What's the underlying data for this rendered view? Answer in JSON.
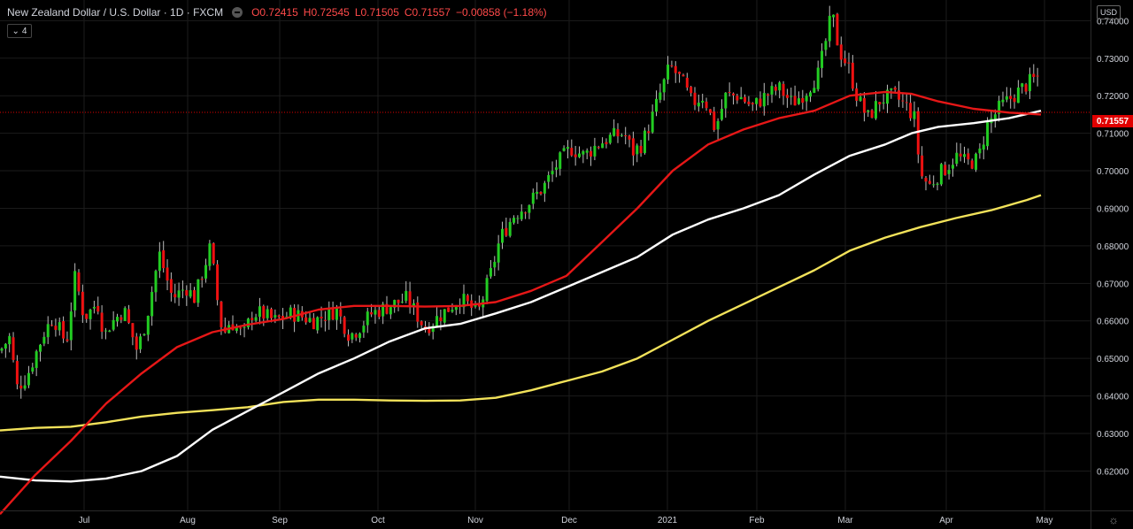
{
  "header": {
    "symbol": "New Zealand Dollar / U.S. Dollar · 1D · FXCM",
    "open": "O0.72415",
    "high": "H0.72545",
    "low": "L0.71505",
    "close": "C0.71557",
    "change": "−0.00858 (−1.18%)",
    "collapse_count": "4",
    "currency": "USD",
    "last_price": "0.71557"
  },
  "colors": {
    "up": "#22cc22",
    "down": "#ee1111",
    "ma_red": "#e61717",
    "ma_white": "#ffffff",
    "ma_yellow": "#f2e25a",
    "grid": "#1b1b1b"
  },
  "chart_data": {
    "type": "candlestick",
    "xlabels": [
      "Jul",
      "Aug",
      "Sep",
      "Oct",
      "Nov",
      "Dec",
      "2021",
      "Feb",
      "Mar",
      "Apr",
      "May"
    ],
    "yticks": [
      "0.74000",
      "0.73000",
      "0.72000",
      "0.71000",
      "0.70000",
      "0.69000",
      "0.68000",
      "0.67000",
      "0.66000",
      "0.65000",
      "0.64000",
      "0.63000",
      "0.62000"
    ],
    "ylim": [
      0.6095,
      0.7455
    ],
    "last_price": 0.71557,
    "price_anchors": [
      [
        0,
        0.652
      ],
      [
        12,
        0.656
      ],
      [
        18,
        0.642
      ],
      [
        30,
        0.645
      ],
      [
        50,
        0.657
      ],
      [
        60,
        0.661
      ],
      [
        75,
        0.654
      ],
      [
        85,
        0.672
      ],
      [
        95,
        0.661
      ],
      [
        100,
        0.662
      ],
      [
        110,
        0.665
      ],
      [
        118,
        0.656
      ],
      [
        124,
        0.659
      ],
      [
        140,
        0.663
      ],
      [
        155,
        0.652
      ],
      [
        165,
        0.66
      ],
      [
        180,
        0.678
      ],
      [
        195,
        0.666
      ],
      [
        210,
        0.669
      ],
      [
        220,
        0.666
      ],
      [
        238,
        0.68
      ],
      [
        244,
        0.668
      ],
      [
        252,
        0.656
      ],
      [
        260,
        0.66
      ],
      [
        275,
        0.656
      ],
      [
        285,
        0.662
      ],
      [
        295,
        0.662
      ],
      [
        310,
        0.66
      ],
      [
        330,
        0.662
      ],
      [
        355,
        0.66
      ],
      [
        380,
        0.663
      ],
      [
        395,
        0.656
      ],
      [
        405,
        0.658
      ],
      [
        420,
        0.662
      ],
      [
        440,
        0.664
      ],
      [
        460,
        0.666
      ],
      [
        480,
        0.658
      ],
      [
        500,
        0.662
      ],
      [
        520,
        0.666
      ],
      [
        540,
        0.662
      ],
      [
        555,
        0.673
      ],
      [
        565,
        0.682
      ],
      [
        580,
        0.688
      ],
      [
        600,
        0.692
      ],
      [
        615,
        0.696
      ],
      [
        630,
        0.702
      ],
      [
        645,
        0.706
      ],
      [
        660,
        0.704
      ],
      [
        675,
        0.707
      ],
      [
        690,
        0.709
      ],
      [
        705,
        0.71
      ],
      [
        715,
        0.705
      ],
      [
        725,
        0.707
      ],
      [
        735,
        0.713
      ],
      [
        745,
        0.72
      ],
      [
        757,
        0.728
      ],
      [
        770,
        0.724
      ],
      [
        782,
        0.718
      ],
      [
        795,
        0.72
      ],
      [
        808,
        0.711
      ],
      [
        820,
        0.72
      ],
      [
        835,
        0.72
      ],
      [
        850,
        0.717
      ],
      [
        865,
        0.72
      ],
      [
        880,
        0.722
      ],
      [
        895,
        0.718
      ],
      [
        910,
        0.721
      ],
      [
        925,
        0.726
      ],
      [
        940,
        0.742
      ],
      [
        948,
        0.732
      ],
      [
        958,
        0.728
      ],
      [
        968,
        0.72
      ],
      [
        980,
        0.714
      ],
      [
        995,
        0.719
      ],
      [
        1010,
        0.72
      ],
      [
        1025,
        0.717
      ],
      [
        1033,
        0.714
      ],
      [
        1040,
        0.699
      ],
      [
        1050,
        0.696
      ],
      [
        1060,
        0.699
      ],
      [
        1070,
        0.701
      ],
      [
        1080,
        0.704
      ],
      [
        1092,
        0.702
      ],
      [
        1105,
        0.703
      ],
      [
        1115,
        0.712
      ],
      [
        1130,
        0.717
      ],
      [
        1145,
        0.72
      ],
      [
        1160,
        0.723
      ],
      [
        1172,
        0.725
      ],
      [
        1176,
        0.72415
      ]
    ],
    "ma_red": [
      [
        0,
        0.6085
      ],
      [
        40,
        0.619
      ],
      [
        80,
        0.628
      ],
      [
        120,
        0.638
      ],
      [
        160,
        0.646
      ],
      [
        200,
        0.653
      ],
      [
        240,
        0.657
      ],
      [
        280,
        0.659
      ],
      [
        320,
        0.6605
      ],
      [
        360,
        0.663
      ],
      [
        400,
        0.664
      ],
      [
        440,
        0.664
      ],
      [
        480,
        0.6638
      ],
      [
        520,
        0.664
      ],
      [
        560,
        0.665
      ],
      [
        600,
        0.668
      ],
      [
        640,
        0.672
      ],
      [
        680,
        0.681
      ],
      [
        720,
        0.69
      ],
      [
        760,
        0.7
      ],
      [
        800,
        0.707
      ],
      [
        840,
        0.711
      ],
      [
        880,
        0.714
      ],
      [
        920,
        0.716
      ],
      [
        960,
        0.72
      ],
      [
        1000,
        0.721
      ],
      [
        1030,
        0.7205
      ],
      [
        1060,
        0.7185
      ],
      [
        1100,
        0.7165
      ],
      [
        1140,
        0.7155
      ],
      [
        1176,
        0.715
      ]
    ],
    "ma_white": [
      [
        0,
        0.6185
      ],
      [
        40,
        0.6175
      ],
      [
        80,
        0.6172
      ],
      [
        120,
        0.618
      ],
      [
        160,
        0.62
      ],
      [
        200,
        0.624
      ],
      [
        240,
        0.631
      ],
      [
        280,
        0.636
      ],
      [
        320,
        0.641
      ],
      [
        360,
        0.646
      ],
      [
        400,
        0.65
      ],
      [
        440,
        0.6545
      ],
      [
        480,
        0.658
      ],
      [
        520,
        0.6592
      ],
      [
        560,
        0.662
      ],
      [
        600,
        0.665
      ],
      [
        640,
        0.669
      ],
      [
        680,
        0.673
      ],
      [
        720,
        0.677
      ],
      [
        760,
        0.683
      ],
      [
        800,
        0.687
      ],
      [
        840,
        0.69
      ],
      [
        880,
        0.6935
      ],
      [
        920,
        0.699
      ],
      [
        960,
        0.704
      ],
      [
        1000,
        0.707
      ],
      [
        1030,
        0.71
      ],
      [
        1060,
        0.7117
      ],
      [
        1100,
        0.7127
      ],
      [
        1140,
        0.714
      ],
      [
        1176,
        0.716
      ]
    ],
    "ma_yellow": [
      [
        0,
        0.6308
      ],
      [
        40,
        0.6315
      ],
      [
        80,
        0.6318
      ],
      [
        120,
        0.633
      ],
      [
        160,
        0.6345
      ],
      [
        200,
        0.6355
      ],
      [
        240,
        0.6362
      ],
      [
        280,
        0.637
      ],
      [
        320,
        0.6384
      ],
      [
        360,
        0.639
      ],
      [
        400,
        0.639
      ],
      [
        440,
        0.6388
      ],
      [
        480,
        0.6387
      ],
      [
        520,
        0.6388
      ],
      [
        560,
        0.6395
      ],
      [
        600,
        0.6415
      ],
      [
        640,
        0.644
      ],
      [
        680,
        0.6465
      ],
      [
        720,
        0.65
      ],
      [
        760,
        0.655
      ],
      [
        800,
        0.66
      ],
      [
        840,
        0.6645
      ],
      [
        880,
        0.669
      ],
      [
        920,
        0.6735
      ],
      [
        960,
        0.6787
      ],
      [
        1000,
        0.6822
      ],
      [
        1040,
        0.685
      ],
      [
        1080,
        0.6874
      ],
      [
        1120,
        0.6895
      ],
      [
        1160,
        0.6922
      ],
      [
        1176,
        0.6935
      ]
    ]
  }
}
